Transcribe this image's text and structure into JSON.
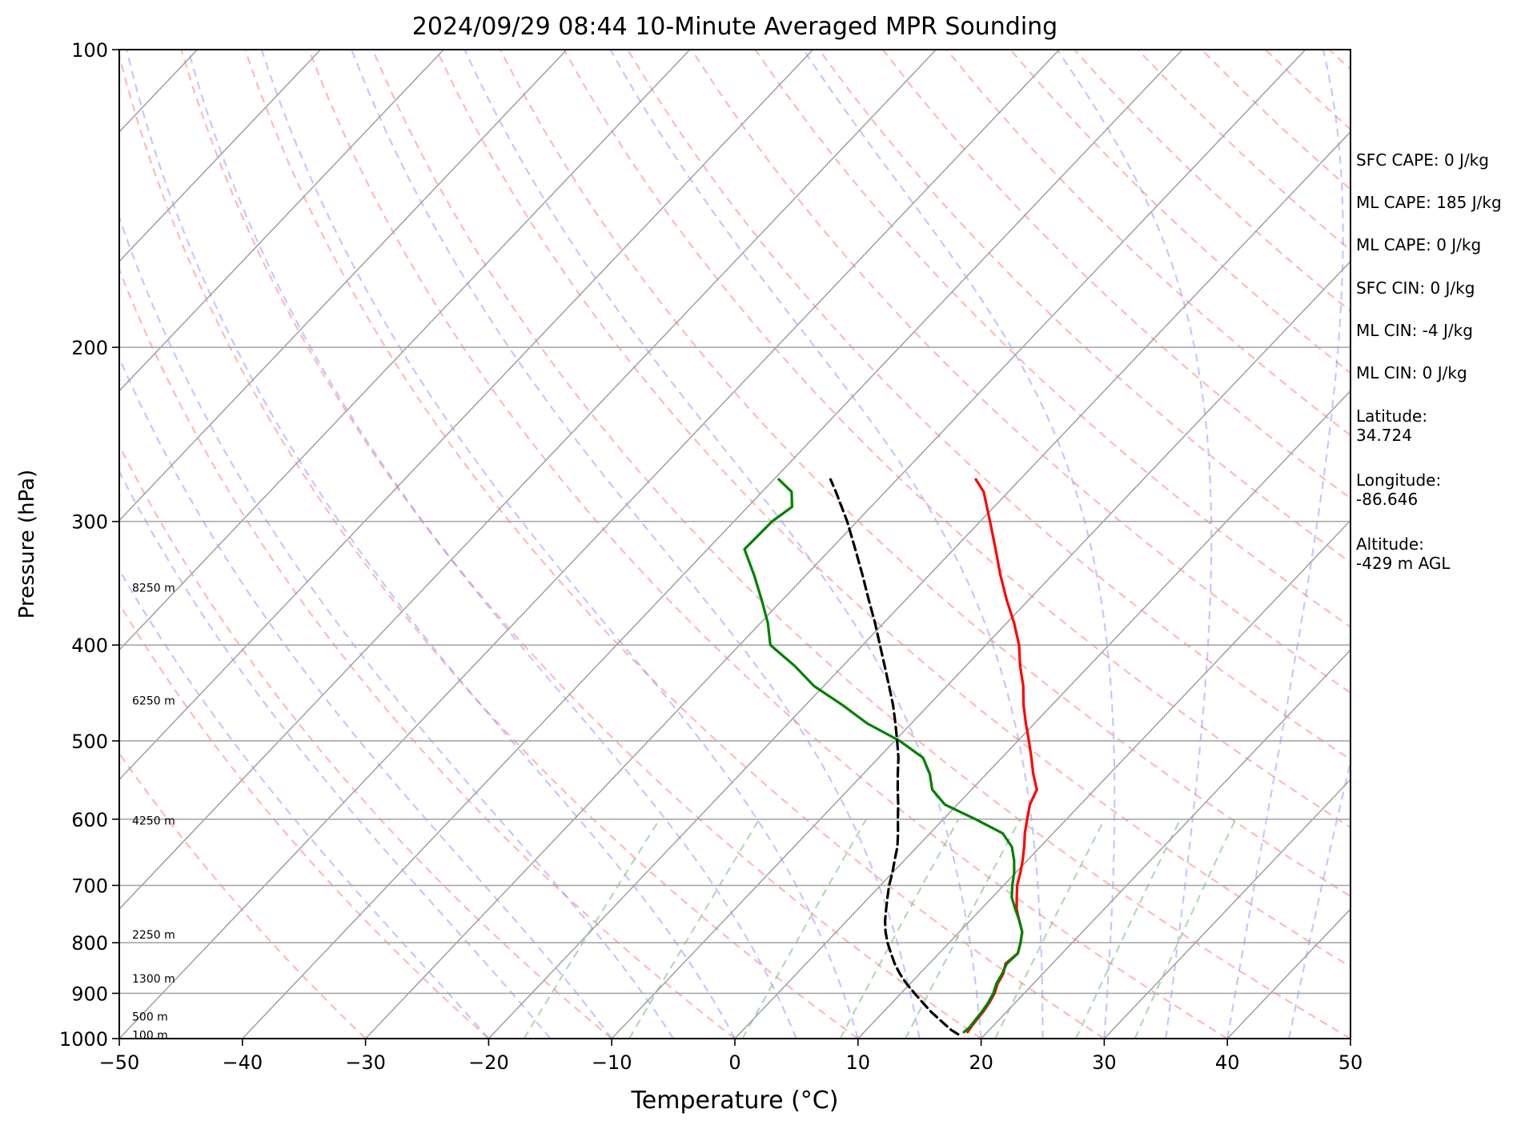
{
  "chart_data": {
    "type": "line",
    "title": "2024/09/29 08:44 10-Minute Averaged MPR Sounding",
    "xlabel": "Temperature (°C)",
    "ylabel": "Pressure (hPa)",
    "xlim": [
      -50,
      50
    ],
    "ylim": [
      1000,
      100
    ],
    "y_scale": "log",
    "x_ticks": [
      "−50",
      "−40",
      "−30",
      "−20",
      "−10",
      "0",
      "10",
      "20",
      "30",
      "40",
      "50"
    ],
    "y_ticks": [
      "100",
      "200",
      "300",
      "400",
      "500",
      "600",
      "700",
      "800",
      "900",
      "1000"
    ],
    "y_tick_values": [
      100,
      200,
      300,
      400,
      500,
      600,
      700,
      800,
      900,
      1000
    ],
    "skew": "isotherms slanted (skew-T log-p)",
    "grid": true,
    "colors": {
      "temperature": "#ff0000",
      "dewpoint": "#008000",
      "parcel": "#000000",
      "dry_adiabats": "#ff8080",
      "moist_adiabats": "#8080ff",
      "mixing_ratio": "#80c080",
      "isotherms": "#a0a0a0"
    },
    "height_labels": [
      {
        "text": "8250 m",
        "p": 350
      },
      {
        "text": "6250 m",
        "p": 455
      },
      {
        "text": "4250 m",
        "p": 602
      },
      {
        "text": "2250 m",
        "p": 785
      },
      {
        "text": "1300 m",
        "p": 870
      },
      {
        "text": "500 m",
        "p": 950
      },
      {
        "text": "100 m",
        "p": 992
      }
    ],
    "series": [
      {
        "key": "temperature",
        "p": [
          985,
          975,
          960,
          940,
          920,
          900,
          880,
          860,
          840,
          820,
          800,
          780,
          760,
          740,
          720,
          700,
          680,
          660,
          640,
          620,
          600,
          580,
          560,
          540,
          520,
          500,
          480,
          460,
          440,
          420,
          400,
          380,
          360,
          340,
          320,
          300,
          280,
          272
        ],
        "t": [
          18.4,
          18.3,
          18.2,
          18.1,
          17.9,
          17.6,
          17.1,
          16.8,
          16.2,
          16.4,
          15.8,
          15.1,
          14.0,
          12.9,
          12.0,
          11.1,
          10.4,
          9.6,
          8.7,
          7.7,
          6.8,
          5.9,
          5.3,
          3.8,
          2.4,
          0.9,
          -0.7,
          -2.3,
          -3.8,
          -5.6,
          -7.3,
          -9.4,
          -11.8,
          -14.2,
          -16.6,
          -19.2,
          -22.0,
          -23.6
        ]
      },
      {
        "key": "dewpoint",
        "p": [
          985,
          975,
          960,
          940,
          920,
          900,
          880,
          860,
          840,
          820,
          800,
          780,
          760,
          740,
          720,
          700,
          680,
          660,
          640,
          620,
          600,
          580,
          560,
          540,
          520,
          500,
          480,
          460,
          440,
          420,
          400,
          380,
          360,
          340,
          320,
          300,
          290,
          280,
          272
        ],
        "t": [
          18.1,
          18.2,
          18.1,
          18.0,
          17.8,
          17.5,
          17.0,
          16.7,
          16.3,
          16.4,
          15.8,
          15.1,
          14.0,
          12.8,
          11.6,
          10.7,
          9.9,
          8.9,
          7.7,
          5.9,
          2.6,
          -1.0,
          -3.2,
          -4.6,
          -6.4,
          -9.6,
          -13.6,
          -17.0,
          -20.8,
          -23.9,
          -27.5,
          -29.4,
          -31.7,
          -34.2,
          -37.0,
          -36.9,
          -36.4,
          -37.6,
          -39.6
        ]
      },
      {
        "key": "parcel",
        "p": [
          990,
          980,
          960,
          940,
          920,
          900,
          880,
          860,
          840,
          820,
          800,
          780,
          760,
          740,
          720,
          700,
          680,
          660,
          640,
          620,
          600,
          580,
          560,
          540,
          520,
          500,
          480,
          460,
          440,
          420,
          400,
          380,
          360,
          340,
          320,
          300,
          280,
          272
        ],
        "t": [
          17.8,
          16.9,
          15.4,
          13.9,
          12.5,
          11.1,
          9.7,
          8.4,
          7.2,
          6.1,
          5.0,
          4.0,
          3.1,
          2.3,
          1.5,
          0.7,
          0.0,
          -0.8,
          -1.6,
          -2.6,
          -3.7,
          -4.8,
          -6.0,
          -7.2,
          -8.4,
          -9.8,
          -11.3,
          -12.9,
          -14.7,
          -16.6,
          -18.6,
          -20.7,
          -23.0,
          -25.4,
          -28.0,
          -30.8,
          -34.0,
          -35.4
        ]
      }
    ]
  },
  "side_panel": {
    "stats": [
      "SFC CAPE: 0 J/kg",
      "ML CAPE: 185 J/kg",
      "ML CAPE: 0 J/kg",
      "SFC CIN: 0 J/kg",
      "ML CIN: -4 J/kg",
      "ML CIN: 0 J/kg"
    ],
    "latitude_label": "Latitude:",
    "latitude_value": "34.724",
    "longitude_label": "Longitude:",
    "longitude_value": "-86.646",
    "altitude_label": "Altitude:",
    "altitude_value": "-429 m AGL"
  }
}
